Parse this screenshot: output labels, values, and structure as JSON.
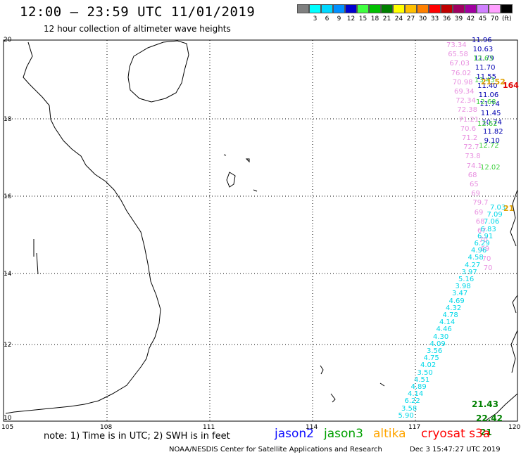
{
  "title": "12:00 — 23:59 UTC 11/01/2019",
  "subtitle": "12 hour collection of altimeter wave heights",
  "scale": {
    "unit": "(ft)",
    "bins": [
      {
        "label": "",
        "color": "#808080"
      },
      {
        "label": "3",
        "color": "#00ffff"
      },
      {
        "label": "6",
        "color": "#00d8ff"
      },
      {
        "label": "9",
        "color": "#0090ff"
      },
      {
        "label": "12",
        "color": "#0000d0"
      },
      {
        "label": "15",
        "color": "#40ff40"
      },
      {
        "label": "18",
        "color": "#00c000"
      },
      {
        "label": "21",
        "color": "#008000"
      },
      {
        "label": "24",
        "color": "#ffff00"
      },
      {
        "label": "27",
        "color": "#ffc000"
      },
      {
        "label": "30",
        "color": "#ff8000"
      },
      {
        "label": "33",
        "color": "#ff0000"
      },
      {
        "label": "36",
        "color": "#c00000"
      },
      {
        "label": "39",
        "color": "#a00060"
      },
      {
        "label": "42",
        "color": "#a000a0"
      },
      {
        "label": "45",
        "color": "#d080ff"
      },
      {
        "label": "70",
        "color": "#ffa0ff"
      },
      {
        "label": "",
        "color": "#000000"
      }
    ]
  },
  "axes": {
    "lat_labels": [
      "20",
      "18",
      "16",
      "14",
      "12",
      "10"
    ],
    "lon_labels": [
      "105",
      "108",
      "111",
      "114",
      "117",
      "120"
    ]
  },
  "tracks": {
    "pink": [
      "73.34",
      "65.58",
      "67.03",
      "76.02",
      "70.98",
      "69.34",
      "72.34",
      "72.38",
      "71.21",
      "70.6",
      "71.2",
      "72.7",
      "73.8",
      "74.1",
      "68",
      "65",
      "69",
      "79.7",
      "69",
      "68",
      "67",
      "70",
      "69",
      "70",
      "70"
    ],
    "navy": [
      "11.96",
      "10.63",
      "11.79",
      "11.70",
      "11.55",
      "11.40",
      "11.06",
      "11.74",
      "11.45",
      "10.74",
      "11.82",
      "9.10"
    ],
    "green": [
      "12.63",
      "13.43",
      "12.68",
      "12.62",
      "12.72",
      "12.02"
    ],
    "cyan": [
      "7.03",
      "7.09",
      "7.06",
      "6.83",
      "6.91",
      "6.29",
      "4.96",
      "4.58",
      "4.27",
      "3.97",
      "5.16",
      "3.98",
      "3.47",
      "4.69",
      "4.32",
      "4.78",
      "4.14",
      "4.46",
      "4.30",
      "4.09",
      "3.56",
      "4.75",
      "4.02",
      "3.50",
      "4.51",
      "4.89",
      "4.14",
      "6.22",
      "3.58",
      "5.90"
    ],
    "darkgreen": [
      "21.43",
      "22.42",
      "21"
    ],
    "red": [
      "164"
    ],
    "orange": [
      "21.52",
      "21"
    ]
  },
  "footer": {
    "note": "note: 1) Time is in UTC; 2) SWH is in feet",
    "satellites": [
      {
        "name": "jason2",
        "color": "#1010ff"
      },
      {
        "name": "jason3",
        "color": "#00a000"
      },
      {
        "name": "altika",
        "color": "#ffa500"
      },
      {
        "name": "cryosat s3a",
        "color": "#ff0000"
      }
    ],
    "credit": "NOAA/NESDIS Center for Satellite Applications and Research",
    "timestamp": "Dec  3 15:47:27 UTC 2019"
  }
}
